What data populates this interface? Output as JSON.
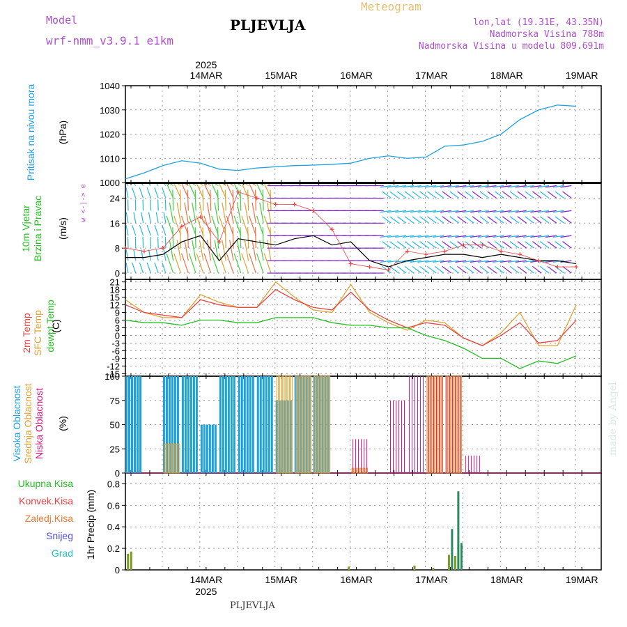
{
  "header": {
    "model_label": "Model",
    "model_name": "wrf-nmm_v3.9.1 e1km",
    "station": "PLJEVLJA",
    "title": "Meteogram",
    "lonlat": "lon,lat (19.31E, 43.35N)",
    "altitude": "Nadmorska Visina 788m",
    "model_altitude": "Nadmorska Visina u modelu 809.691m",
    "footer_station": "PLJEVLJA",
    "watermark": "made by Angel"
  },
  "colors": {
    "pressure": "#1ca0e0",
    "temp2m": "#e84040",
    "sfc": "#e0a030",
    "dewpt": "#22c020",
    "high_cloud": "#1ca0e0",
    "mid_cloud": "#e0a030",
    "low_cloud": "#d01880",
    "accent_purple": "#b050d0"
  },
  "chart_data": [
    {
      "type": "line",
      "panel": "pressure",
      "ylabel_1": "Pritisak na nivou mora",
      "ylabel_2": "(hPa)",
      "ylim": [
        1000,
        1040
      ],
      "yticks": [
        1000,
        1010,
        1020,
        1030,
        1040
      ],
      "x_top_year": "2025",
      "x_dates": [
        "14MAR",
        "15MAR",
        "16MAR",
        "17MAR",
        "18MAR",
        "19MAR"
      ],
      "x_hours": [
        0,
        6,
        12,
        18,
        24,
        30,
        36,
        42,
        48,
        54,
        60,
        66,
        72,
        78,
        84,
        90,
        96,
        102,
        108,
        114,
        120,
        126,
        132,
        138,
        144
      ],
      "series": [
        {
          "values": [
            1001.5,
            1004,
            1007,
            1009,
            1008,
            1005.5,
            1005,
            1006,
            1006.5,
            1007,
            1007.2,
            1007.5,
            1008,
            1010,
            1011,
            1010,
            1010.5,
            1015,
            1015.5,
            1017,
            1020,
            1026,
            1030,
            1032,
            1031.5
          ]
        }
      ],
      "grid": true
    },
    {
      "type": "line",
      "panel": "wind",
      "ylabel_1": "10m Vjetar",
      "ylabel_2": "Brzina i Pravac",
      "ylabel_3": "(m/s)",
      "compass_label": "w <-|-> e",
      "ylim": [
        -2,
        29
      ],
      "yticks": [
        0,
        8,
        16,
        24
      ],
      "series": [
        {
          "name": "speed",
          "values": [
            5,
            5,
            6,
            10,
            12,
            4,
            11,
            10,
            9,
            11,
            12,
            9,
            10,
            4,
            2,
            4,
            5,
            6,
            6,
            5,
            6,
            5,
            4,
            4,
            3
          ]
        },
        {
          "name": "gust",
          "values": [
            8,
            7,
            8,
            15,
            18,
            10,
            26,
            24,
            22,
            22,
            20,
            14,
            3,
            2,
            1,
            7,
            6,
            7,
            9,
            9,
            7,
            6,
            4,
            2,
            2
          ]
        }
      ],
      "grid": true
    },
    {
      "type": "line",
      "panel": "temperature",
      "ylabel_1": "2m Temp",
      "ylabel_2": "SFC Temp",
      "ylabel_3": "dewpt Temp",
      "ylabel_4": "(C)",
      "ylim": [
        -16,
        22
      ],
      "yticks": [
        21,
        18,
        15,
        12,
        9,
        6,
        3,
        0,
        -3,
        -6,
        -9,
        -12,
        -15
      ],
      "series": [
        {
          "name": "2m Temp",
          "values": [
            12,
            9,
            8,
            7,
            14,
            12,
            11,
            11,
            18,
            14,
            11,
            10,
            17,
            10,
            6,
            3,
            5,
            4,
            -1,
            -4,
            0,
            5,
            -3,
            -2,
            6
          ]
        },
        {
          "name": "SFC Temp",
          "values": [
            14,
            9,
            7,
            7,
            16,
            13,
            11,
            11,
            21,
            15,
            10,
            9,
            20,
            9,
            5,
            2,
            6,
            5,
            -1,
            -4,
            1,
            9,
            -4,
            -4,
            12
          ]
        },
        {
          "name": "dewpt Temp",
          "values": [
            6,
            5,
            5,
            4,
            6,
            6,
            5,
            5,
            7,
            7,
            7,
            5,
            4,
            4,
            3,
            3,
            0,
            -2,
            -5,
            -9,
            -9,
            -13,
            -10,
            -11,
            -8
          ]
        }
      ],
      "grid": true
    },
    {
      "type": "bar",
      "panel": "clouds",
      "ylabel_1": "Visoka Oblacnost",
      "ylabel_2": "Srednja Oblacnost",
      "ylabel_3": "Niska Oblacnost",
      "ylabel_4": "(%)",
      "ylim": [
        0,
        100
      ],
      "yticks": [
        0,
        25,
        50,
        75,
        100
      ],
      "series": [
        {
          "name": "Visoka Oblacnost",
          "values": [
            100,
            0,
            100,
            100,
            50,
            100,
            100,
            100,
            75,
            100,
            100,
            0,
            0,
            0,
            0,
            0,
            0,
            0,
            0,
            0,
            0,
            0,
            0,
            0,
            0
          ]
        },
        {
          "name": "Srednja Oblacnost",
          "values": [
            0,
            0,
            30,
            0,
            0,
            0,
            0,
            0,
            100,
            100,
            100,
            0,
            5,
            0,
            0,
            0,
            100,
            100,
            0,
            0,
            0,
            0,
            0,
            0,
            0
          ]
        },
        {
          "name": "Niska Oblacnost",
          "values": [
            0,
            0,
            0,
            0,
            0,
            0,
            0,
            0,
            0,
            0,
            0,
            0,
            35,
            0,
            75,
            100,
            100,
            100,
            18,
            0,
            0,
            0,
            0,
            0,
            0
          ]
        }
      ],
      "grid": true
    },
    {
      "type": "bar",
      "panel": "precip",
      "ylabel_1": "1hr Precip (mm)",
      "legend": [
        "Ukupna Kisa",
        "Konvek.Kisa",
        "Zaledj.Kisa",
        "Snijeg",
        "Grad"
      ],
      "legend_colors": [
        "#22c020",
        "#e84040",
        "#f07830",
        "#5050e0",
        "#20c0c0"
      ],
      "ylim": [
        0,
        0.9
      ],
      "yticks": [
        0,
        0.2,
        0.4,
        0.6,
        0.8
      ],
      "ytick_labels": [
        "0",
        "0.2",
        "0.4",
        "0.6",
        "0.8"
      ],
      "x_dates": [
        "14MAR",
        "15MAR",
        "16MAR",
        "17MAR",
        "18MAR",
        "19MAR"
      ],
      "x_bottom_year": "2025",
      "bars": [
        {
          "hour": 0.5,
          "value": 0.15
        },
        {
          "hour": 1.5,
          "value": 0.17
        },
        {
          "hour": 71,
          "value": 0.03
        },
        {
          "hour": 92,
          "value": 0.04
        },
        {
          "hour": 98,
          "value": 0.02
        },
        {
          "hour": 103,
          "value": 0.14
        },
        {
          "hour": 104,
          "value": 0.38
        },
        {
          "hour": 105,
          "value": 0.13
        },
        {
          "hour": 106,
          "value": 0.73
        },
        {
          "hour": 107,
          "value": 0.25
        }
      ],
      "grid": true
    }
  ]
}
